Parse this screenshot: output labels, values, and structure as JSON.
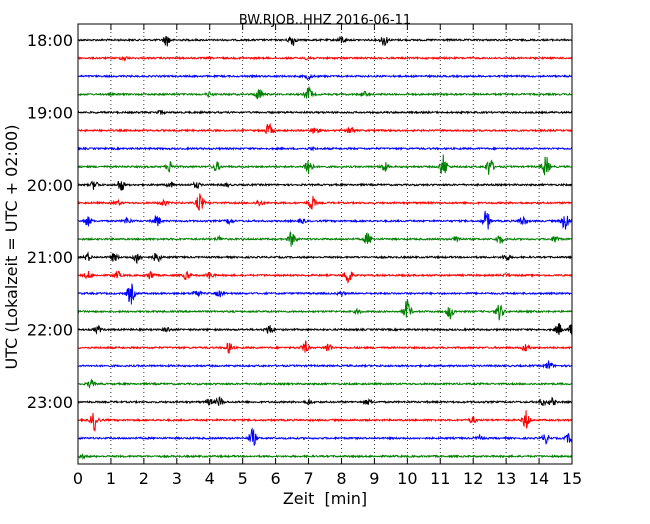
{
  "chart_data": {
    "type": "line",
    "title": "BW.RJOB..HHZ 2016-06-11",
    "xlabel": "Zeit  [min]",
    "ylabel": "UTC (Lokalzeit = UTC + 02:00)",
    "xlim": [
      0,
      15
    ],
    "x_ticks": [
      "0",
      "1",
      "2",
      "3",
      "4",
      "5",
      "6",
      "7",
      "8",
      "9",
      "10",
      "11",
      "12",
      "13",
      "14",
      "15"
    ],
    "y_tick_labels": [
      "18:00",
      "19:00",
      "20:00",
      "21:00",
      "22:00",
      "23:00"
    ],
    "grid": "vertical dotted",
    "trace_colors": [
      "#000000",
      "#ff0000",
      "#0000ff",
      "#008000"
    ],
    "traces": [
      {
        "start": "18:00",
        "bursts": [
          {
            "min": 2.7,
            "amp": 0.5
          },
          {
            "min": 6.5,
            "amp": 0.55
          },
          {
            "min": 8.0,
            "amp": 0.3
          },
          {
            "min": 9.3,
            "amp": 0.5
          }
        ]
      },
      {
        "start": "18:15",
        "bursts": [
          {
            "min": 1.4,
            "amp": 0.15
          },
          {
            "min": 7.0,
            "amp": 0.15
          }
        ]
      },
      {
        "start": "18:30",
        "bursts": [
          {
            "min": 7.0,
            "amp": 0.25
          }
        ]
      },
      {
        "start": "18:45",
        "bursts": [
          {
            "min": 4.0,
            "amp": 0.2
          },
          {
            "min": 5.5,
            "amp": 0.5
          },
          {
            "min": 7.0,
            "amp": 0.6
          },
          {
            "min": 8.7,
            "amp": 0.2
          }
        ]
      },
      {
        "start": "19:00",
        "bursts": [
          {
            "min": 2.5,
            "amp": 0.15
          }
        ]
      },
      {
        "start": "19:15",
        "bursts": [
          {
            "min": 5.8,
            "amp": 0.55
          },
          {
            "min": 7.2,
            "amp": 0.35
          },
          {
            "min": 8.3,
            "amp": 0.3
          }
        ]
      },
      {
        "start": "19:30",
        "bursts": [
          {
            "min": 7.1,
            "amp": 0.1
          }
        ]
      },
      {
        "start": "19:45",
        "bursts": [
          {
            "min": 2.8,
            "amp": 0.5
          },
          {
            "min": 4.2,
            "amp": 0.4
          },
          {
            "min": 7.0,
            "amp": 0.9
          },
          {
            "min": 9.3,
            "amp": 0.4
          },
          {
            "min": 11.1,
            "amp": 1.0
          },
          {
            "min": 12.5,
            "amp": 0.8
          },
          {
            "min": 14.2,
            "amp": 0.9
          }
        ]
      },
      {
        "start": "20:00",
        "bursts": [
          {
            "min": 0.5,
            "amp": 0.4
          },
          {
            "min": 1.3,
            "amp": 0.55
          },
          {
            "min": 2.8,
            "amp": 0.2
          },
          {
            "min": 3.6,
            "amp": 0.25
          },
          {
            "min": 4.5,
            "amp": 0.15
          }
        ]
      },
      {
        "start": "20:15",
        "bursts": [
          {
            "min": 1.2,
            "amp": 0.2
          },
          {
            "min": 2.6,
            "amp": 0.25
          },
          {
            "min": 3.7,
            "amp": 0.8
          },
          {
            "min": 5.5,
            "amp": 0.25
          },
          {
            "min": 7.1,
            "amp": 0.6
          }
        ]
      },
      {
        "start": "20:30",
        "bursts": [
          {
            "min": 0.3,
            "amp": 0.4
          },
          {
            "min": 1.5,
            "amp": 0.25
          },
          {
            "min": 2.4,
            "amp": 0.5
          },
          {
            "min": 4.6,
            "amp": 0.2
          },
          {
            "min": 6.8,
            "amp": 0.2
          },
          {
            "min": 12.4,
            "amp": 0.9
          },
          {
            "min": 13.5,
            "amp": 0.4
          },
          {
            "min": 14.8,
            "amp": 0.8
          }
        ]
      },
      {
        "start": "20:45",
        "bursts": [
          {
            "min": 4.3,
            "amp": 0.2
          },
          {
            "min": 6.5,
            "amp": 0.7
          },
          {
            "min": 8.8,
            "amp": 0.5
          },
          {
            "min": 11.5,
            "amp": 0.3
          },
          {
            "min": 12.8,
            "amp": 0.4
          },
          {
            "min": 14.5,
            "amp": 0.3
          }
        ]
      },
      {
        "start": "21:00",
        "bursts": [
          {
            "min": 0.3,
            "amp": 0.3
          },
          {
            "min": 1.1,
            "amp": 0.35
          },
          {
            "min": 1.8,
            "amp": 0.5
          },
          {
            "min": 2.4,
            "amp": 0.45
          },
          {
            "min": 13.0,
            "amp": 0.25
          }
        ]
      },
      {
        "start": "21:15",
        "bursts": [
          {
            "min": 0.3,
            "amp": 0.3
          },
          {
            "min": 1.2,
            "amp": 0.3
          },
          {
            "min": 2.2,
            "amp": 0.35
          },
          {
            "min": 3.3,
            "amp": 0.35
          },
          {
            "min": 4.0,
            "amp": 0.3
          },
          {
            "min": 8.2,
            "amp": 0.8
          },
          {
            "min": 13.0,
            "amp": 0.1
          }
        ]
      },
      {
        "start": "21:30",
        "bursts": [
          {
            "min": 1.6,
            "amp": 0.9
          },
          {
            "min": 3.6,
            "amp": 0.35
          },
          {
            "min": 4.3,
            "amp": 0.25
          },
          {
            "min": 8.0,
            "amp": 0.15
          }
        ]
      },
      {
        "start": "21:45",
        "bursts": [
          {
            "min": 8.5,
            "amp": 0.15
          },
          {
            "min": 10.0,
            "amp": 1.0
          },
          {
            "min": 11.3,
            "amp": 0.6
          },
          {
            "min": 12.8,
            "amp": 0.7
          }
        ]
      },
      {
        "start": "22:00",
        "bursts": [
          {
            "min": 0.6,
            "amp": 0.3
          },
          {
            "min": 2.7,
            "amp": 0.2
          },
          {
            "min": 5.8,
            "amp": 0.4
          },
          {
            "min": 14.6,
            "amp": 0.5
          },
          {
            "min": 15.0,
            "amp": 0.5
          }
        ]
      },
      {
        "start": "22:15",
        "bursts": [
          {
            "min": 4.6,
            "amp": 0.5
          },
          {
            "min": 6.9,
            "amp": 0.5
          },
          {
            "min": 7.6,
            "amp": 0.4
          },
          {
            "min": 13.6,
            "amp": 0.3
          }
        ]
      },
      {
        "start": "22:30",
        "bursts": [
          {
            "min": 14.3,
            "amp": 0.4
          }
        ]
      },
      {
        "start": "22:45",
        "bursts": [
          {
            "min": 0.4,
            "amp": 0.3
          }
        ]
      },
      {
        "start": "23:00",
        "bursts": [
          {
            "min": 4.0,
            "amp": 0.25
          },
          {
            "min": 4.3,
            "amp": 0.4
          },
          {
            "min": 7.0,
            "amp": 0.2
          },
          {
            "min": 8.8,
            "amp": 0.2
          },
          {
            "min": 14.1,
            "amp": 0.3
          },
          {
            "min": 14.4,
            "amp": 0.3
          }
        ]
      },
      {
        "start": "23:15",
        "bursts": [
          {
            "min": 0.5,
            "amp": 0.9
          },
          {
            "min": 12.0,
            "amp": 0.25
          },
          {
            "min": 13.6,
            "amp": 0.8
          }
        ]
      },
      {
        "start": "23:30",
        "bursts": [
          {
            "min": 5.3,
            "amp": 0.8
          },
          {
            "min": 12.2,
            "amp": 0.2
          },
          {
            "min": 14.2,
            "amp": 0.4
          },
          {
            "min": 14.9,
            "amp": 0.35
          }
        ]
      },
      {
        "start": "23:45",
        "bursts": [
          {
            "min": 0.1,
            "amp": 0.15
          }
        ]
      }
    ]
  }
}
